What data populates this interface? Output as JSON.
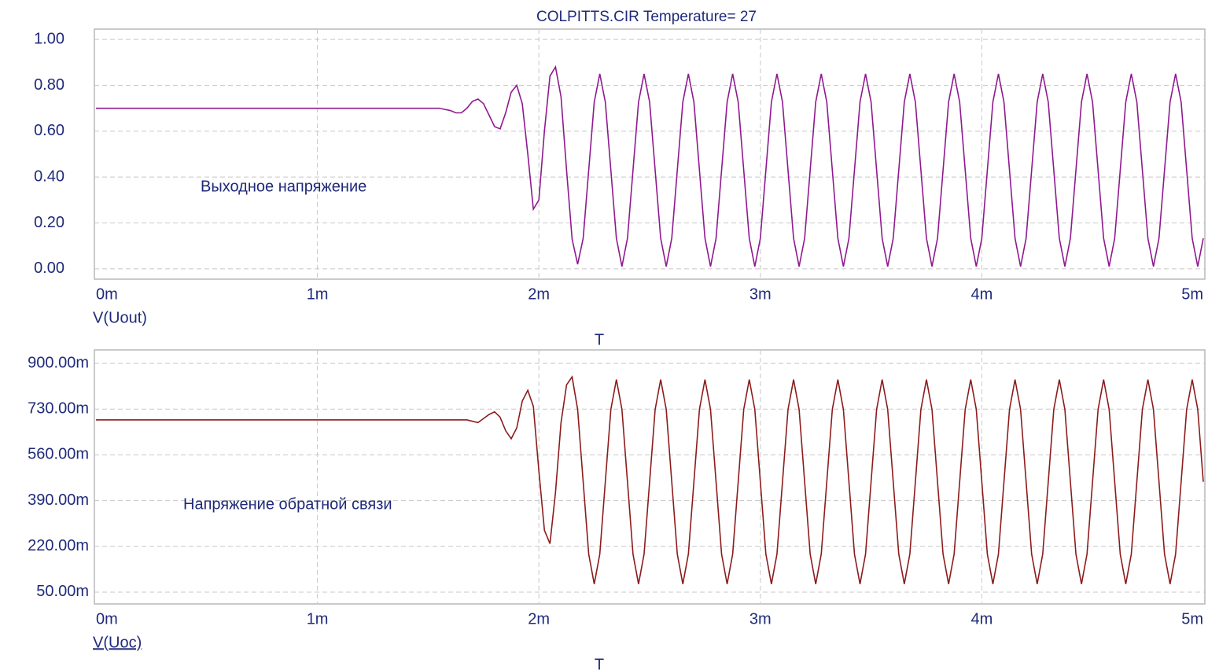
{
  "chart_data": [
    {
      "type": "line",
      "title": "COLPITTS.CIR Temperature= 27",
      "annotation": "Выходное напряжение",
      "x_label": "T",
      "xlim": [
        0,
        0.005
      ],
      "xticks": [
        {
          "value": 0,
          "label": "0m"
        },
        {
          "value": 0.001,
          "label": "1m"
        },
        {
          "value": 0.002,
          "label": "2m"
        },
        {
          "value": 0.003,
          "label": "3m"
        },
        {
          "value": 0.004,
          "label": "4m"
        },
        {
          "value": 0.005,
          "label": "5m"
        }
      ],
      "ylim": [
        -0.045,
        1.045
      ],
      "yticks": [
        {
          "value": 0,
          "label": "0.00"
        },
        {
          "value": 0.2,
          "label": "0.20"
        },
        {
          "value": 0.4,
          "label": "0.40"
        },
        {
          "value": 0.6,
          "label": "0.60"
        },
        {
          "value": 0.8,
          "label": "0.80"
        },
        {
          "value": 1,
          "label": "1.00"
        }
      ],
      "grid": true,
      "x": [
        0,
        0.0015,
        0.001525,
        0.00155,
        0.001575,
        0.0016,
        0.001625,
        0.00165,
        0.001675,
        0.0017,
        0.001725,
        0.00175,
        0.001775,
        0.0018,
        0.001825,
        0.00185,
        0.001875,
        0.0019,
        0.001925,
        0.00195,
        0.001975,
        0.002,
        0.002025,
        0.00205,
        0.002075,
        0.0021,
        0.002125,
        0.00215,
        0.002175,
        0.0022,
        0.002225,
        0.00225,
        0.002275,
        0.0023,
        0.002325,
        0.00235,
        0.002375,
        0.0024,
        0.002425,
        0.00245,
        0.002475,
        0.0025,
        0.002525,
        0.00255,
        0.002575,
        0.0026,
        0.002625,
        0.00265,
        0.002675,
        0.0027,
        0.002725,
        0.00275,
        0.002775,
        0.0028,
        0.002825,
        0.00285,
        0.002875,
        0.0029,
        0.002925,
        0.00295,
        0.002975,
        0.003,
        0.003025,
        0.00305,
        0.003075,
        0.0031,
        0.003125,
        0.00315,
        0.003175,
        0.0032,
        0.003225,
        0.00325,
        0.003275,
        0.0033,
        0.003325,
        0.00335,
        0.003375,
        0.0034,
        0.003425,
        0.00345,
        0.003475,
        0.0035,
        0.003525,
        0.00355,
        0.003575,
        0.0036,
        0.003625,
        0.00365,
        0.003675,
        0.0037,
        0.003725,
        0.00375,
        0.003775,
        0.0038,
        0.003825,
        0.00385,
        0.003875,
        0.0039,
        0.003925,
        0.00395,
        0.003975,
        0.004,
        0.004025,
        0.00405,
        0.004075,
        0.0041,
        0.004125,
        0.00415,
        0.004175,
        0.0042,
        0.004225,
        0.00425,
        0.004275,
        0.0043,
        0.004325,
        0.00435,
        0.004375,
        0.0044,
        0.004425,
        0.00445,
        0.004475,
        0.0045,
        0.004525,
        0.00455,
        0.004575,
        0.0046,
        0.004625,
        0.00465,
        0.004675,
        0.0047,
        0.004725,
        0.00475,
        0.004775,
        0.0048,
        0.004825,
        0.00485,
        0.004875,
        0.0049,
        0.004925,
        0.00495,
        0.004975,
        0.005
      ],
      "series": [
        {
          "name": "V(Uout)",
          "color": "#8e1a8e",
          "values": [
            0.7,
            0.7,
            0.7,
            0.7,
            0.695,
            0.69,
            0.68,
            0.68,
            0.7,
            0.73,
            0.74,
            0.72,
            0.67,
            0.62,
            0.61,
            0.68,
            0.77,
            0.8,
            0.72,
            0.5,
            0.26,
            0.3,
            0.6,
            0.84,
            0.88,
            0.75,
            0.43,
            0.13,
            0.02,
            0.133,
            0.43,
            0.727,
            0.85,
            0.727,
            0.43,
            0.133,
            0.01,
            0.133,
            0.43,
            0.727,
            0.85,
            0.727,
            0.43,
            0.133,
            0.01,
            0.133,
            0.43,
            0.727,
            0.85,
            0.727,
            0.43,
            0.133,
            0.01,
            0.133,
            0.43,
            0.727,
            0.85,
            0.727,
            0.43,
            0.133,
            0.01,
            0.133,
            0.43,
            0.727,
            0.85,
            0.727,
            0.43,
            0.133,
            0.01,
            0.133,
            0.43,
            0.727,
            0.85,
            0.727,
            0.43,
            0.133,
            0.01,
            0.133,
            0.43,
            0.727,
            0.85,
            0.727,
            0.43,
            0.133,
            0.01,
            0.133,
            0.43,
            0.727,
            0.85,
            0.727,
            0.43,
            0.133,
            0.01,
            0.133,
            0.43,
            0.727,
            0.85,
            0.727,
            0.43,
            0.133,
            0.01,
            0.133,
            0.43,
            0.727,
            0.85,
            0.727,
            0.43,
            0.133,
            0.01,
            0.133,
            0.43,
            0.727,
            0.85,
            0.727,
            0.43,
            0.133,
            0.01,
            0.133,
            0.43,
            0.727,
            0.85,
            0.727,
            0.43,
            0.133,
            0.01,
            0.133,
            0.43,
            0.727,
            0.85,
            0.727,
            0.43,
            0.133,
            0.01,
            0.133,
            0.43,
            0.727,
            0.85,
            0.727,
            0.43,
            0.133,
            0.01,
            0.133
          ]
        }
      ]
    },
    {
      "type": "line",
      "annotation": "Напряжение обратной связи",
      "x_label": "T",
      "xlim": [
        0,
        0.005
      ],
      "xticks": [
        {
          "value": 0,
          "label": "0m"
        },
        {
          "value": 0.001,
          "label": "1m"
        },
        {
          "value": 0.002,
          "label": "2m"
        },
        {
          "value": 0.003,
          "label": "3m"
        },
        {
          "value": 0.004,
          "label": "4m"
        },
        {
          "value": 0.005,
          "label": "5m"
        }
      ],
      "ylim": [
        0.006,
        0.95
      ],
      "yticks": [
        {
          "value": 0.05,
          "label": "50.00m"
        },
        {
          "value": 0.22,
          "label": "220.00m"
        },
        {
          "value": 0.39,
          "label": "390.00m"
        },
        {
          "value": 0.56,
          "label": "560.00m"
        },
        {
          "value": 0.73,
          "label": "730.00m"
        },
        {
          "value": 0.9,
          "label": "900.00m"
        }
      ],
      "grid": true,
      "x": [
        0,
        0.0015,
        0.001525,
        0.00155,
        0.001575,
        0.0016,
        0.001625,
        0.00165,
        0.001675,
        0.0017,
        0.001725,
        0.00175,
        0.001775,
        0.0018,
        0.001825,
        0.00185,
        0.001875,
        0.0019,
        0.001925,
        0.00195,
        0.001975,
        0.002,
        0.002025,
        0.00205,
        0.002075,
        0.0021,
        0.002125,
        0.00215,
        0.002175,
        0.0022,
        0.002225,
        0.00225,
        0.002275,
        0.0023,
        0.002325,
        0.00235,
        0.002375,
        0.0024,
        0.002425,
        0.00245,
        0.002475,
        0.0025,
        0.002525,
        0.00255,
        0.002575,
        0.0026,
        0.002625,
        0.00265,
        0.002675,
        0.0027,
        0.002725,
        0.00275,
        0.002775,
        0.0028,
        0.002825,
        0.00285,
        0.002875,
        0.0029,
        0.002925,
        0.00295,
        0.002975,
        0.003,
        0.003025,
        0.00305,
        0.003075,
        0.0031,
        0.003125,
        0.00315,
        0.003175,
        0.0032,
        0.003225,
        0.00325,
        0.003275,
        0.0033,
        0.003325,
        0.00335,
        0.003375,
        0.0034,
        0.003425,
        0.00345,
        0.003475,
        0.0035,
        0.003525,
        0.00355,
        0.003575,
        0.0036,
        0.003625,
        0.00365,
        0.003675,
        0.0037,
        0.003725,
        0.00375,
        0.003775,
        0.0038,
        0.003825,
        0.00385,
        0.003875,
        0.0039,
        0.003925,
        0.00395,
        0.003975,
        0.004,
        0.004025,
        0.00405,
        0.004075,
        0.0041,
        0.004125,
        0.00415,
        0.004175,
        0.0042,
        0.004225,
        0.00425,
        0.004275,
        0.0043,
        0.004325,
        0.00435,
        0.004375,
        0.0044,
        0.004425,
        0.00445,
        0.004475,
        0.0045,
        0.004525,
        0.00455,
        0.004575,
        0.0046,
        0.004625,
        0.00465,
        0.004675,
        0.0047,
        0.004725,
        0.00475,
        0.004775,
        0.0048,
        0.004825,
        0.00485,
        0.004875,
        0.0049,
        0.004925,
        0.00495,
        0.004975,
        0.005
      ],
      "series": [
        {
          "name": "V(Uoc)",
          "color": "#8b1c1c",
          "values": [
            0.69,
            0.69,
            0.69,
            0.69,
            0.69,
            0.69,
            0.69,
            0.69,
            0.69,
            0.685,
            0.68,
            0.695,
            0.71,
            0.72,
            0.7,
            0.65,
            0.62,
            0.66,
            0.76,
            0.8,
            0.74,
            0.5,
            0.28,
            0.23,
            0.42,
            0.68,
            0.82,
            0.85,
            0.729,
            0.46,
            0.191,
            0.08,
            0.191,
            0.46,
            0.729,
            0.84,
            0.729,
            0.46,
            0.191,
            0.08,
            0.191,
            0.46,
            0.729,
            0.84,
            0.729,
            0.46,
            0.191,
            0.08,
            0.191,
            0.46,
            0.729,
            0.84,
            0.729,
            0.46,
            0.191,
            0.08,
            0.191,
            0.46,
            0.729,
            0.84,
            0.729,
            0.46,
            0.191,
            0.08,
            0.191,
            0.46,
            0.729,
            0.84,
            0.729,
            0.46,
            0.191,
            0.08,
            0.191,
            0.46,
            0.729,
            0.84,
            0.729,
            0.46,
            0.191,
            0.08,
            0.191,
            0.46,
            0.729,
            0.84,
            0.729,
            0.46,
            0.191,
            0.08,
            0.191,
            0.46,
            0.729,
            0.84,
            0.729,
            0.46,
            0.191,
            0.08,
            0.191,
            0.46,
            0.729,
            0.84,
            0.729,
            0.46,
            0.191,
            0.08,
            0.191,
            0.46,
            0.729,
            0.84,
            0.729,
            0.46,
            0.191,
            0.08,
            0.191,
            0.46,
            0.729,
            0.84,
            0.729,
            0.46,
            0.191,
            0.08,
            0.191,
            0.46,
            0.729,
            0.84,
            0.729,
            0.46,
            0.191,
            0.08,
            0.191,
            0.46,
            0.729,
            0.84,
            0.729,
            0.46,
            0.191,
            0.08,
            0.191,
            0.46,
            0.729,
            0.84,
            0.729,
            0.46
          ]
        }
      ]
    }
  ]
}
